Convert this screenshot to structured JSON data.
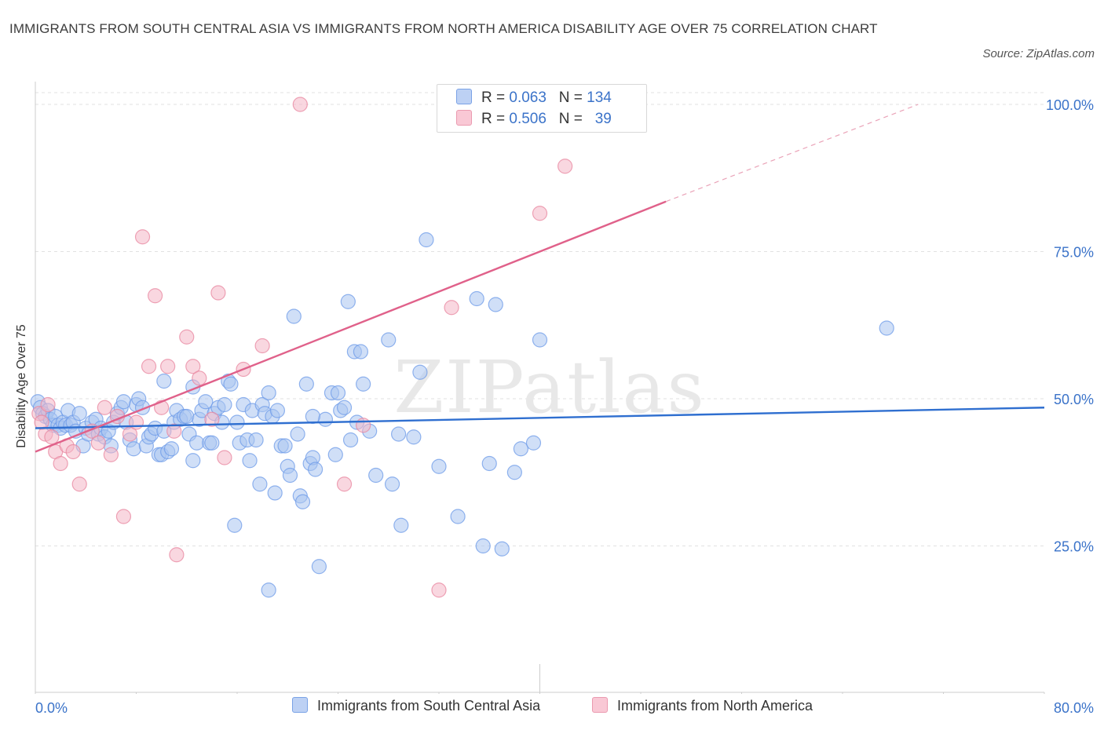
{
  "title": "IMMIGRANTS FROM SOUTH CENTRAL ASIA VS IMMIGRANTS FROM NORTH AMERICA DISABILITY AGE OVER 75 CORRELATION CHART",
  "source": "Source: ZipAtlas.com",
  "watermark": "ZIPatlas",
  "legend": {
    "rows": [
      {
        "r_label": "R =",
        "r_value": "0.063",
        "n_label": "N =",
        "n_value": "134"
      },
      {
        "r_label": "R =",
        "r_value": "0.506",
        "n_label": "N =",
        "n_value": "39"
      }
    ]
  },
  "chart_data": {
    "type": "scatter",
    "ylabel": "Disability Age Over 75",
    "xlabel": "",
    "xlim": [
      0,
      80
    ],
    "ylim": [
      0,
      100
    ],
    "x_tick_labels": [
      "0.0%",
      "80.0%"
    ],
    "y_tick_labels": [
      {
        "value": 25,
        "label": "25.0%"
      },
      {
        "value": 50,
        "label": "50.0%"
      },
      {
        "value": 75,
        "label": "75.0%"
      },
      {
        "value": 100,
        "label": "100.0%"
      }
    ],
    "grid": true,
    "legend_position": "bottom",
    "series": [
      {
        "name": "Immigrants from South Central Asia",
        "color": "#6d9be8",
        "fill": "#a9c4f0",
        "trend": {
          "x0": 0,
          "y0": 45,
          "x1": 80,
          "y1": 48.5
        },
        "points": [
          [
            0.2,
            49.5
          ],
          [
            0.4,
            48.5
          ],
          [
            0.6,
            47.5
          ],
          [
            0.8,
            47
          ],
          [
            1,
            48
          ],
          [
            1.2,
            46.5
          ],
          [
            1.4,
            45.5
          ],
          [
            1.6,
            47
          ],
          [
            1.8,
            45.5
          ],
          [
            2.0,
            45
          ],
          [
            2.2,
            46
          ],
          [
            2.4,
            45.5
          ],
          [
            2.6,
            48
          ],
          [
            2.8,
            45.5
          ],
          [
            3.0,
            46
          ],
          [
            3.2,
            44.5
          ],
          [
            3.5,
            47.5
          ],
          [
            3.8,
            42
          ],
          [
            4.0,
            45
          ],
          [
            4.2,
            44
          ],
          [
            4.5,
            46
          ],
          [
            4.8,
            46.5
          ],
          [
            5.0,
            44
          ],
          [
            5.2,
            45
          ],
          [
            5.5,
            43.5
          ],
          [
            5.8,
            44.5
          ],
          [
            6.0,
            42
          ],
          [
            6.2,
            46
          ],
          [
            6.5,
            47.5
          ],
          [
            6.8,
            48.5
          ],
          [
            7.0,
            49.5
          ],
          [
            7.2,
            46
          ],
          [
            7.5,
            43
          ],
          [
            7.8,
            41.5
          ],
          [
            8.0,
            49
          ],
          [
            8.2,
            50
          ],
          [
            8.5,
            48.5
          ],
          [
            8.8,
            42
          ],
          [
            9.0,
            43.5
          ],
          [
            9.2,
            44
          ],
          [
            9.5,
            45
          ],
          [
            9.8,
            40.5
          ],
          [
            10,
            40.5
          ],
          [
            10.2,
            44.5
          ],
          [
            10.5,
            41
          ],
          [
            10.8,
            41.5
          ],
          [
            10.2,
            53
          ],
          [
            11,
            46
          ],
          [
            11.2,
            48
          ],
          [
            11.5,
            46.5
          ],
          [
            11.8,
            47
          ],
          [
            12,
            47
          ],
          [
            12.2,
            44
          ],
          [
            12.5,
            39.5
          ],
          [
            12.8,
            42.5
          ],
          [
            12.5,
            52
          ],
          [
            13,
            46.5
          ],
          [
            13.2,
            48
          ],
          [
            13.5,
            49.5
          ],
          [
            13.8,
            42.5
          ],
          [
            14,
            42.5
          ],
          [
            14.2,
            47.5
          ],
          [
            14.5,
            48.5
          ],
          [
            14.8,
            46
          ],
          [
            15,
            49
          ],
          [
            15.3,
            53
          ],
          [
            15.5,
            52.5
          ],
          [
            15.8,
            28.5
          ],
          [
            16,
            46
          ],
          [
            16.2,
            42.5
          ],
          [
            16.5,
            49
          ],
          [
            16.8,
            43
          ],
          [
            17,
            39.5
          ],
          [
            17.2,
            48
          ],
          [
            17.5,
            43
          ],
          [
            17.8,
            35.5
          ],
          [
            18,
            49
          ],
          [
            18.2,
            47.5
          ],
          [
            18.5,
            51
          ],
          [
            18.8,
            47
          ],
          [
            19,
            34
          ],
          [
            19.2,
            48
          ],
          [
            19.5,
            42
          ],
          [
            19.8,
            42
          ],
          [
            20,
            38.5
          ],
          [
            20.2,
            37
          ],
          [
            20.5,
            64
          ],
          [
            20.8,
            44
          ],
          [
            21,
            33.5
          ],
          [
            21.2,
            32.5
          ],
          [
            21.5,
            52.5
          ],
          [
            21.8,
            39
          ],
          [
            22,
            40
          ],
          [
            22.2,
            38
          ],
          [
            22.5,
            21.5
          ],
          [
            23,
            46.5
          ],
          [
            23.5,
            51
          ],
          [
            23.8,
            40.5
          ],
          [
            24,
            51
          ],
          [
            24.2,
            48
          ],
          [
            24.5,
            48.5
          ],
          [
            24.8,
            66.5
          ],
          [
            25,
            43
          ],
          [
            25.3,
            58
          ],
          [
            25.5,
            46
          ],
          [
            25.8,
            58
          ],
          [
            26,
            52.5
          ],
          [
            26.5,
            44.5
          ],
          [
            27,
            37
          ],
          [
            28,
            60
          ],
          [
            28.3,
            35.5
          ],
          [
            28.8,
            44
          ],
          [
            29,
            28.5
          ],
          [
            30,
            43.5
          ],
          [
            30.5,
            54.5
          ],
          [
            31,
            77
          ],
          [
            32,
            38.5
          ],
          [
            33.5,
            30
          ],
          [
            35,
            67
          ],
          [
            35.5,
            25
          ],
          [
            36,
            39
          ],
          [
            36.5,
            66
          ],
          [
            37,
            24.5
          ],
          [
            38,
            37.5
          ],
          [
            38.5,
            41.5
          ],
          [
            39.5,
            42.5
          ],
          [
            40,
            60
          ],
          [
            67.5,
            62
          ],
          [
            18.5,
            17.5
          ],
          [
            22,
            47
          ]
        ]
      },
      {
        "name": "Immigrants from North America",
        "color": "#e8869f",
        "fill": "#f4b6c7",
        "trend": {
          "x0": 0,
          "y0": 41,
          "x1": 50,
          "y1": 83.5,
          "dash_to_x": 70,
          "dash_to_y": 100
        },
        "points": [
          [
            0.3,
            47.5
          ],
          [
            0.5,
            46
          ],
          [
            0.8,
            44
          ],
          [
            1,
            49
          ],
          [
            1.3,
            43.5
          ],
          [
            1.6,
            41
          ],
          [
            2,
            39
          ],
          [
            2.5,
            42
          ],
          [
            3,
            41
          ],
          [
            3.5,
            35.5
          ],
          [
            4.5,
            44.5
          ],
          [
            5,
            42.5
          ],
          [
            5.5,
            48.5
          ],
          [
            6,
            40.5
          ],
          [
            6.5,
            47
          ],
          [
            7,
            30
          ],
          [
            7.5,
            44
          ],
          [
            8,
            46
          ],
          [
            8.5,
            77.5
          ],
          [
            9,
            55.5
          ],
          [
            9.5,
            67.5
          ],
          [
            10,
            48.5
          ],
          [
            10.5,
            55.5
          ],
          [
            11,
            44.5
          ],
          [
            11.2,
            23.5
          ],
          [
            12,
            60.5
          ],
          [
            12.5,
            55.5
          ],
          [
            13,
            53.5
          ],
          [
            14,
            46.5
          ],
          [
            14.5,
            68
          ],
          [
            15,
            40
          ],
          [
            16.5,
            55
          ],
          [
            18,
            59
          ],
          [
            21,
            100
          ],
          [
            24.5,
            35.5
          ],
          [
            26,
            45.5
          ],
          [
            32,
            17.5
          ],
          [
            33,
            65.5
          ],
          [
            40,
            81.5
          ],
          [
            42,
            89.5
          ]
        ]
      }
    ]
  }
}
